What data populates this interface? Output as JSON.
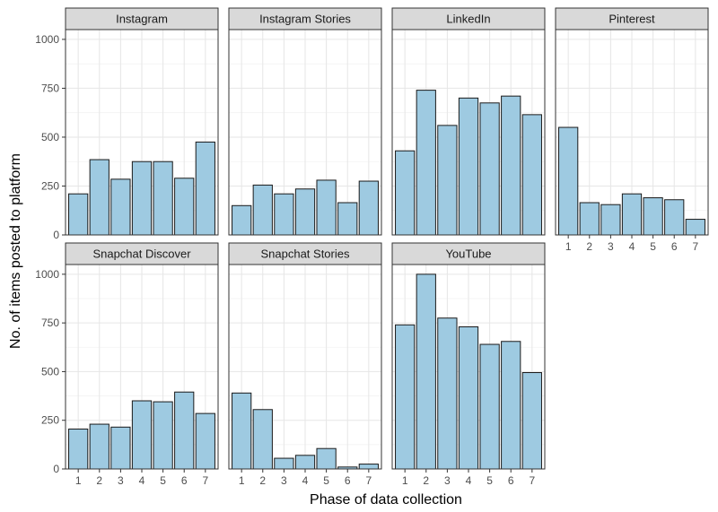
{
  "chart_data": {
    "type": "bar",
    "layout": "facet-wrap",
    "xlabel": "Phase of data collection",
    "ylabel": "No. of items posted to platform",
    "categories": [
      "1",
      "2",
      "3",
      "4",
      "5",
      "6",
      "7"
    ],
    "ylim": [
      0,
      1050
    ],
    "yticks": [
      0,
      250,
      500,
      750,
      1000
    ],
    "grid": true,
    "colors": {
      "bar_fill": "#9ecae1",
      "bar_stroke": "#1a1a1a",
      "strip": "#d9d9d9"
    },
    "panels": [
      {
        "name": "Instagram",
        "values": [
          210,
          385,
          285,
          375,
          375,
          290,
          475
        ]
      },
      {
        "name": "Instagram Stories",
        "values": [
          150,
          255,
          210,
          235,
          280,
          165,
          275
        ]
      },
      {
        "name": "LinkedIn",
        "values": [
          430,
          740,
          560,
          700,
          675,
          710,
          615
        ]
      },
      {
        "name": "Pinterest",
        "values": [
          550,
          165,
          155,
          210,
          190,
          180,
          80
        ]
      },
      {
        "name": "Snapchat Discover",
        "values": [
          205,
          230,
          215,
          350,
          345,
          395,
          285
        ]
      },
      {
        "name": "Snapchat Stories",
        "values": [
          390,
          305,
          55,
          70,
          105,
          10,
          25
        ]
      },
      {
        "name": "YouTube",
        "values": [
          740,
          1000,
          775,
          730,
          640,
          655,
          495
        ]
      }
    ]
  }
}
